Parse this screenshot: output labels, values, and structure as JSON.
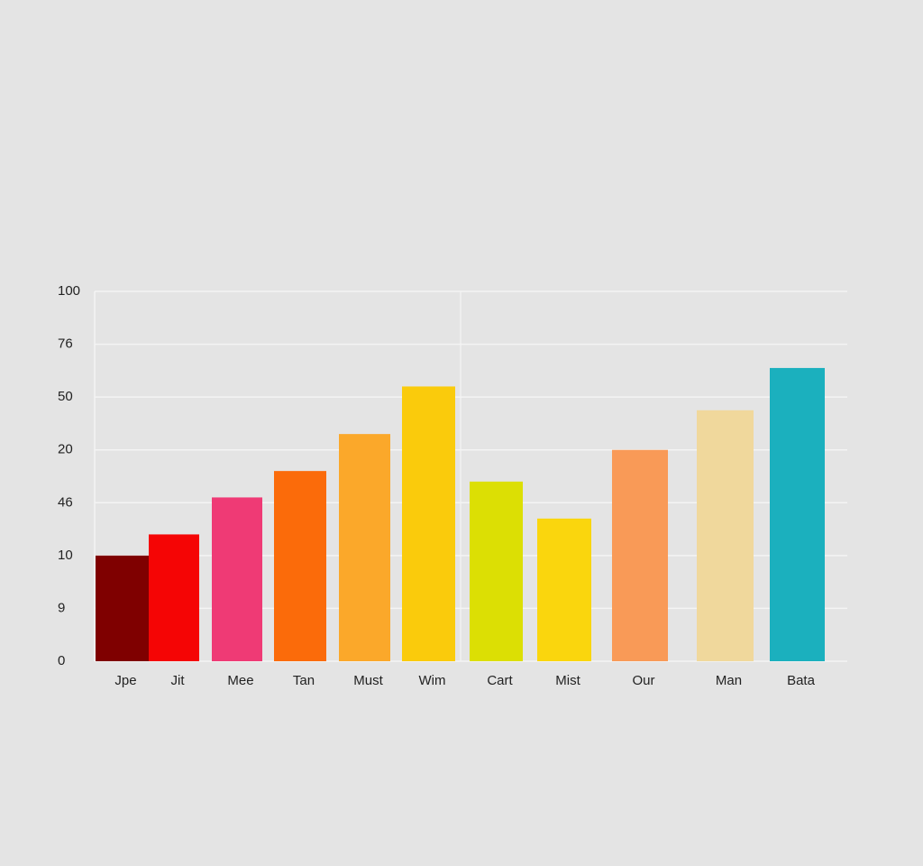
{
  "chart_data": {
    "type": "bar",
    "categories": [
      "Jpe",
      "Jit",
      "Mee",
      "Tan",
      "Must",
      "Wim",
      "Cart",
      "Mist",
      "Our",
      "Man",
      "Bata"
    ],
    "values": [
      2.0,
      2.4,
      3.1,
      3.6,
      4.3,
      5.2,
      3.4,
      2.7,
      4.0,
      4.75,
      5.55
    ],
    "colors": [
      "#7f0000",
      "#f50505",
      "#ef3a75",
      "#fb6b0a",
      "#fba82a",
      "#facb0c",
      "#dcdf04",
      "#fad60d",
      "#f99a57",
      "#f0d89c",
      "#1bb0be"
    ],
    "ylim": [
      0,
      7
    ],
    "yticks": [
      0,
      {
        "value": 1,
        "label": "9"
      },
      {
        "value": 2,
        "label": "10"
      },
      {
        "value": 3,
        "label": "46"
      },
      {
        "value": 4,
        "label": "20"
      },
      {
        "value": 5,
        "label": "50"
      },
      {
        "value": 6,
        "label": "76"
      },
      {
        "value": 7,
        "label": "100"
      }
    ],
    "grid": true
  }
}
